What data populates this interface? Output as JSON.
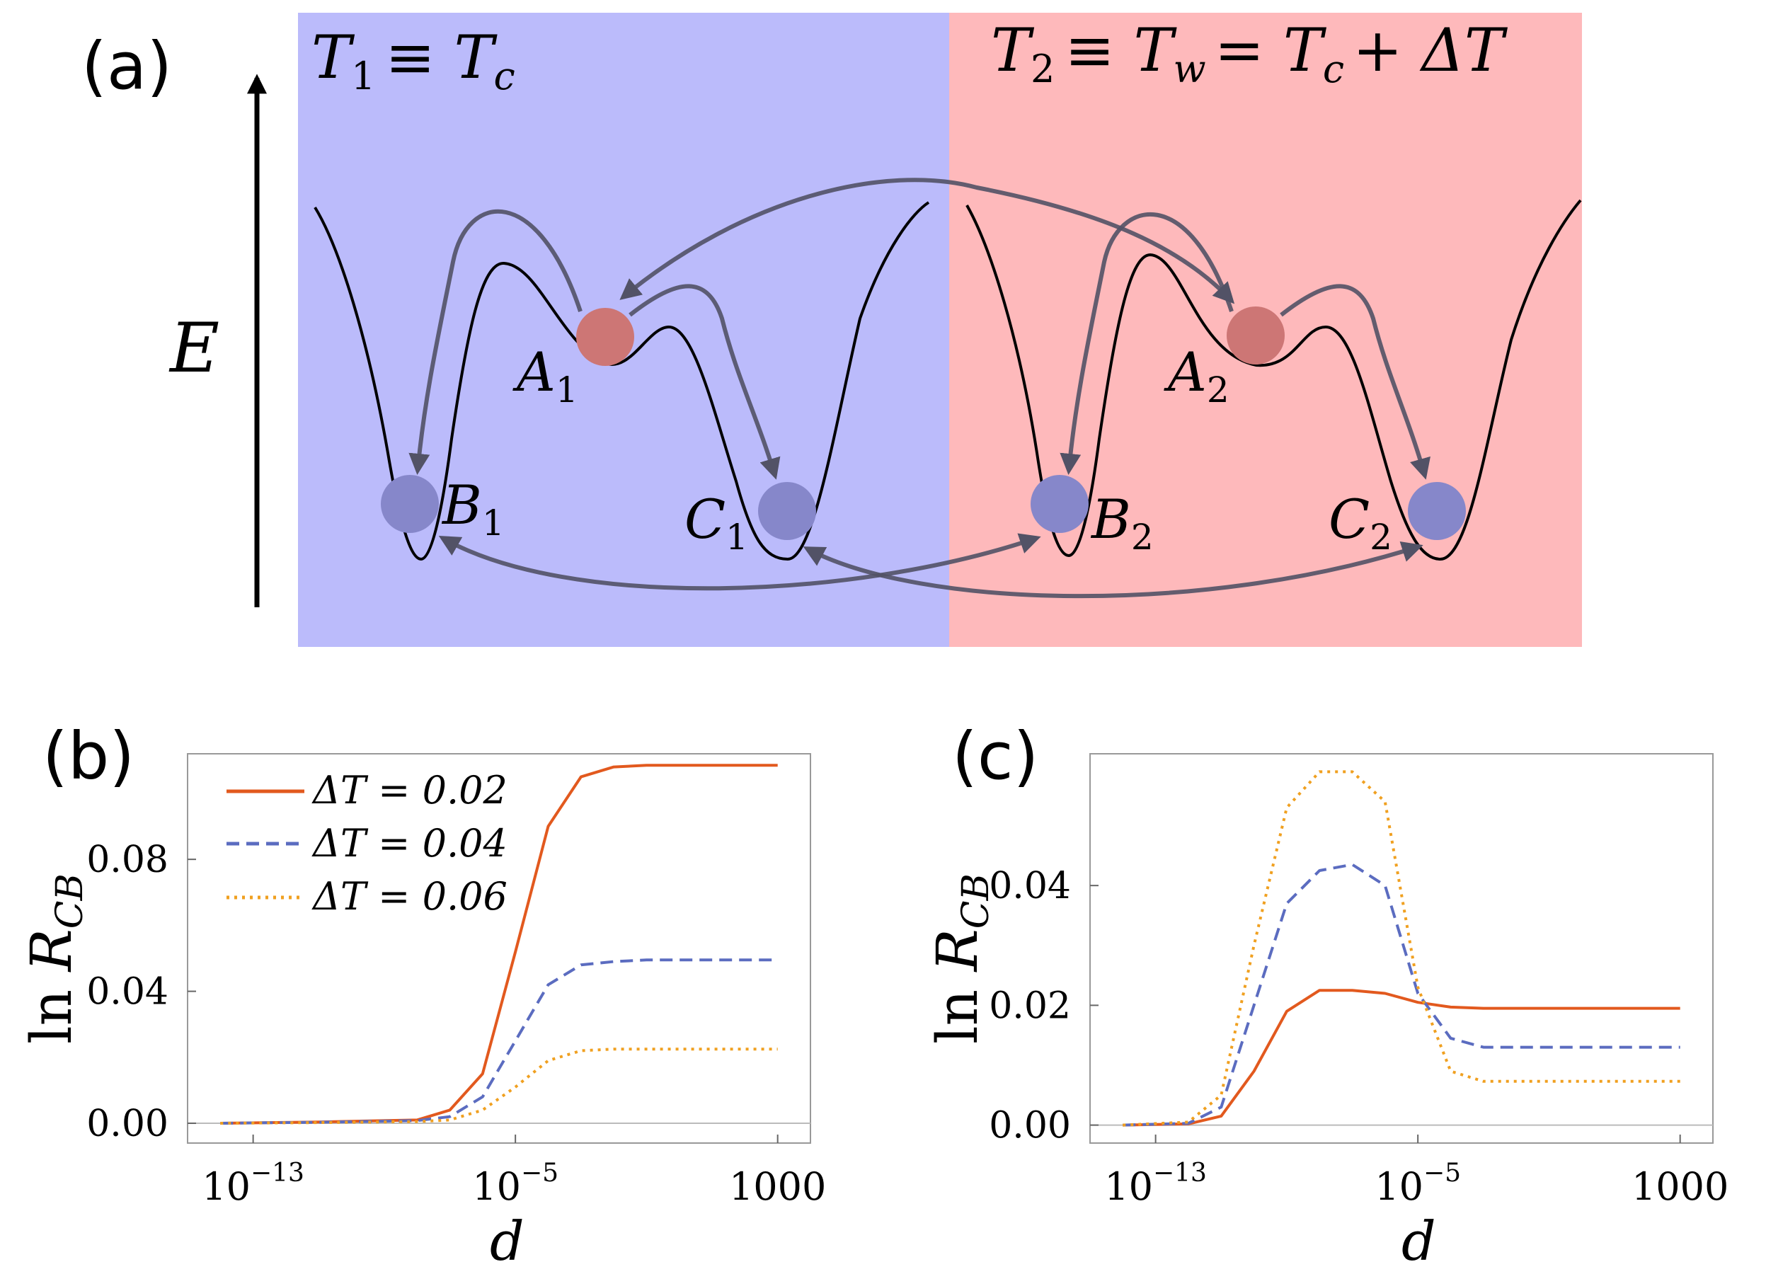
{
  "panel_a": {
    "label": "(a)",
    "energy_label": "E",
    "cold_title": {
      "main": "T",
      "sub": "1",
      "rest": "≡ T",
      "sub2": "c"
    },
    "warm_title": {
      "main": "T",
      "sub": "2",
      "rest1": "≡ T",
      "sub2": "w",
      "rest2": "= T",
      "sub3": "c",
      "rest3": "+ ΔT"
    },
    "colors": {
      "cold_bg": "#bbbbfb",
      "warm_bg": "#feb9bb",
      "red_ball": "#cd7675",
      "blue_ball": "#8687ca",
      "arrow": "#525266"
    },
    "states": [
      {
        "id": "A1",
        "letter": "A",
        "sub": "1",
        "ball": "red"
      },
      {
        "id": "B1",
        "letter": "B",
        "sub": "1",
        "ball": "blue"
      },
      {
        "id": "C1",
        "letter": "C",
        "sub": "1",
        "ball": "blue"
      },
      {
        "id": "A2",
        "letter": "A",
        "sub": "2",
        "ball": "red"
      },
      {
        "id": "B2",
        "letter": "B",
        "sub": "2",
        "ball": "blue"
      },
      {
        "id": "C2",
        "letter": "C",
        "sub": "2",
        "ball": "blue"
      }
    ]
  },
  "chart_data": [
    {
      "panel": "(b)",
      "type": "line",
      "xscale": "log10",
      "xlim": [
        1e-15,
        10000
      ],
      "ylim": [
        -0.006,
        0.112
      ],
      "xticks": [
        "10^-13",
        "10^-5",
        "1000"
      ],
      "yticks": [
        "0.00",
        "0.04",
        "0.08"
      ],
      "xlabel": "d",
      "ylabel": "ln R_CB",
      "legend": "top-left",
      "series": [
        {
          "name": "ΔT = 0.02",
          "style": "solid",
          "color": "#e2591e",
          "x": [
            1e-14,
            1e-11,
            1e-08,
            1e-07,
            1e-06,
            1e-05,
            0.0001,
            0.001,
            0.01,
            0.1,
            1,
            10,
            100,
            1000
          ],
          "y": [
            0,
            0.0004,
            0.001,
            0.004,
            0.015,
            0.052,
            0.09,
            0.105,
            0.108,
            0.1085,
            0.1085,
            0.1085,
            0.1085,
            0.1085
          ]
        },
        {
          "name": "ΔT = 0.04",
          "style": "dashed",
          "color": "#5b6cc0",
          "x": [
            1e-14,
            1e-11,
            1e-08,
            1e-07,
            1e-06,
            1e-05,
            0.0001,
            0.001,
            0.01,
            0.1,
            1,
            10,
            100,
            1000
          ],
          "y": [
            0,
            0.0003,
            0.0008,
            0.002,
            0.008,
            0.025,
            0.042,
            0.048,
            0.049,
            0.0495,
            0.0495,
            0.0495,
            0.0495,
            0.0495
          ]
        },
        {
          "name": "ΔT = 0.06",
          "style": "dotted",
          "color": "#f0a020",
          "x": [
            1e-14,
            1e-11,
            1e-08,
            1e-07,
            1e-06,
            1e-05,
            0.0001,
            0.001,
            0.01,
            0.1,
            1,
            10,
            100,
            1000
          ],
          "y": [
            0,
            0.0002,
            0.0005,
            0.001,
            0.004,
            0.011,
            0.019,
            0.022,
            0.0225,
            0.0225,
            0.0225,
            0.0225,
            0.0225,
            0.0225
          ]
        }
      ]
    },
    {
      "panel": "(c)",
      "type": "line",
      "xscale": "log10",
      "xlim": [
        1e-15,
        10000
      ],
      "ylim": [
        -0.003,
        0.062
      ],
      "xticks": [
        "10^-13",
        "10^-5",
        "1000"
      ],
      "yticks": [
        "0.00",
        "0.02",
        "0.04"
      ],
      "xlabel": "d",
      "ylabel": "ln R_CB",
      "series": [
        {
          "name": "ΔT = 0.02",
          "style": "solid",
          "color": "#e2591e",
          "x": [
            1e-14,
            1e-12,
            1e-11,
            1e-10,
            1e-09,
            1e-08,
            1e-07,
            1e-06,
            1e-05,
            0.0001,
            0.001,
            0.1,
            10,
            1000
          ],
          "y": [
            0,
            0.0002,
            0.0015,
            0.009,
            0.019,
            0.0225,
            0.0225,
            0.022,
            0.0205,
            0.0197,
            0.0195,
            0.0195,
            0.0195,
            0.0195
          ]
        },
        {
          "name": "ΔT = 0.04",
          "style": "dashed",
          "color": "#5b6cc0",
          "x": [
            1e-14,
            1e-12,
            1e-11,
            1e-10,
            1e-09,
            1e-08,
            1e-07,
            1e-06,
            1e-05,
            0.0001,
            0.001,
            0.1,
            10,
            1000
          ],
          "y": [
            0,
            0.0003,
            0.003,
            0.02,
            0.037,
            0.0425,
            0.0435,
            0.04,
            0.022,
            0.0145,
            0.013,
            0.013,
            0.013,
            0.013
          ]
        },
        {
          "name": "ΔT = 0.06",
          "style": "dotted",
          "color": "#f0a020",
          "x": [
            1e-14,
            1e-12,
            1e-11,
            1e-10,
            1e-09,
            1e-08,
            1e-07,
            1e-06,
            1e-05,
            0.0001,
            0.001,
            0.1,
            10,
            1000
          ],
          "y": [
            0,
            0.0005,
            0.005,
            0.03,
            0.053,
            0.059,
            0.059,
            0.054,
            0.023,
            0.009,
            0.0073,
            0.0073,
            0.0073,
            0.0073
          ]
        }
      ]
    }
  ]
}
